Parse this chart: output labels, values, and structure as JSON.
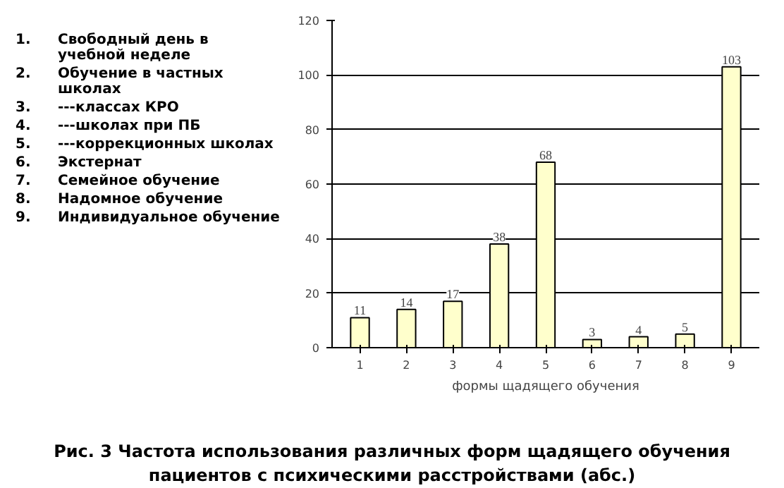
{
  "chart_data": {
    "type": "bar",
    "title": "Рис. 3 Частота использования различных форм щадящего обучения пациентов с психическими расстройствами (абс.)",
    "xlabel": "формы щадящего обучения",
    "categories": [
      "1",
      "2",
      "3",
      "4",
      "5",
      "6",
      "7",
      "8",
      "9"
    ],
    "values": [
      11,
      14,
      17,
      38,
      68,
      3,
      4,
      5,
      103
    ],
    "color": "#ffffcc",
    "data_labels": true,
    "ylim": [
      0,
      120
    ],
    "yticks": [
      0,
      20,
      40,
      60,
      80,
      100,
      120
    ],
    "grid": "y",
    "annotations": [
      "1. Свободный день в учебной неделе",
      "2. Обучение в частных школах",
      "3. ---классах КРО",
      "4. ---школах при ПБ",
      "5. ---коррекционных школах",
      "6. Экстернат",
      "7. Семейное обучение",
      "8. Надомное обучение",
      "9. Индивидуальное обучение"
    ]
  }
}
